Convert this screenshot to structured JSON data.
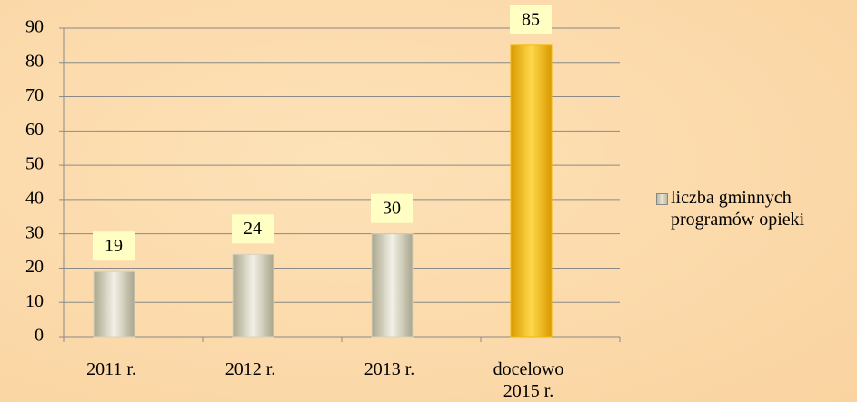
{
  "chart_data": {
    "type": "bar",
    "categories": [
      "2011 r.",
      "2012 r.",
      "2013 r.",
      "docelowo 2015 r."
    ],
    "series": [
      {
        "name": "liczba gminnych programów opieki",
        "values": [
          19,
          24,
          30,
          85
        ],
        "colors": [
          "#d6d3bd",
          "#d6d3bd",
          "#d6d3bd",
          "#f5b800"
        ]
      }
    ],
    "ylim": [
      0,
      90
    ],
    "yticks": [
      0,
      10,
      20,
      30,
      40,
      50,
      60,
      70,
      80,
      90
    ],
    "grid": true,
    "legend": "right"
  }
}
